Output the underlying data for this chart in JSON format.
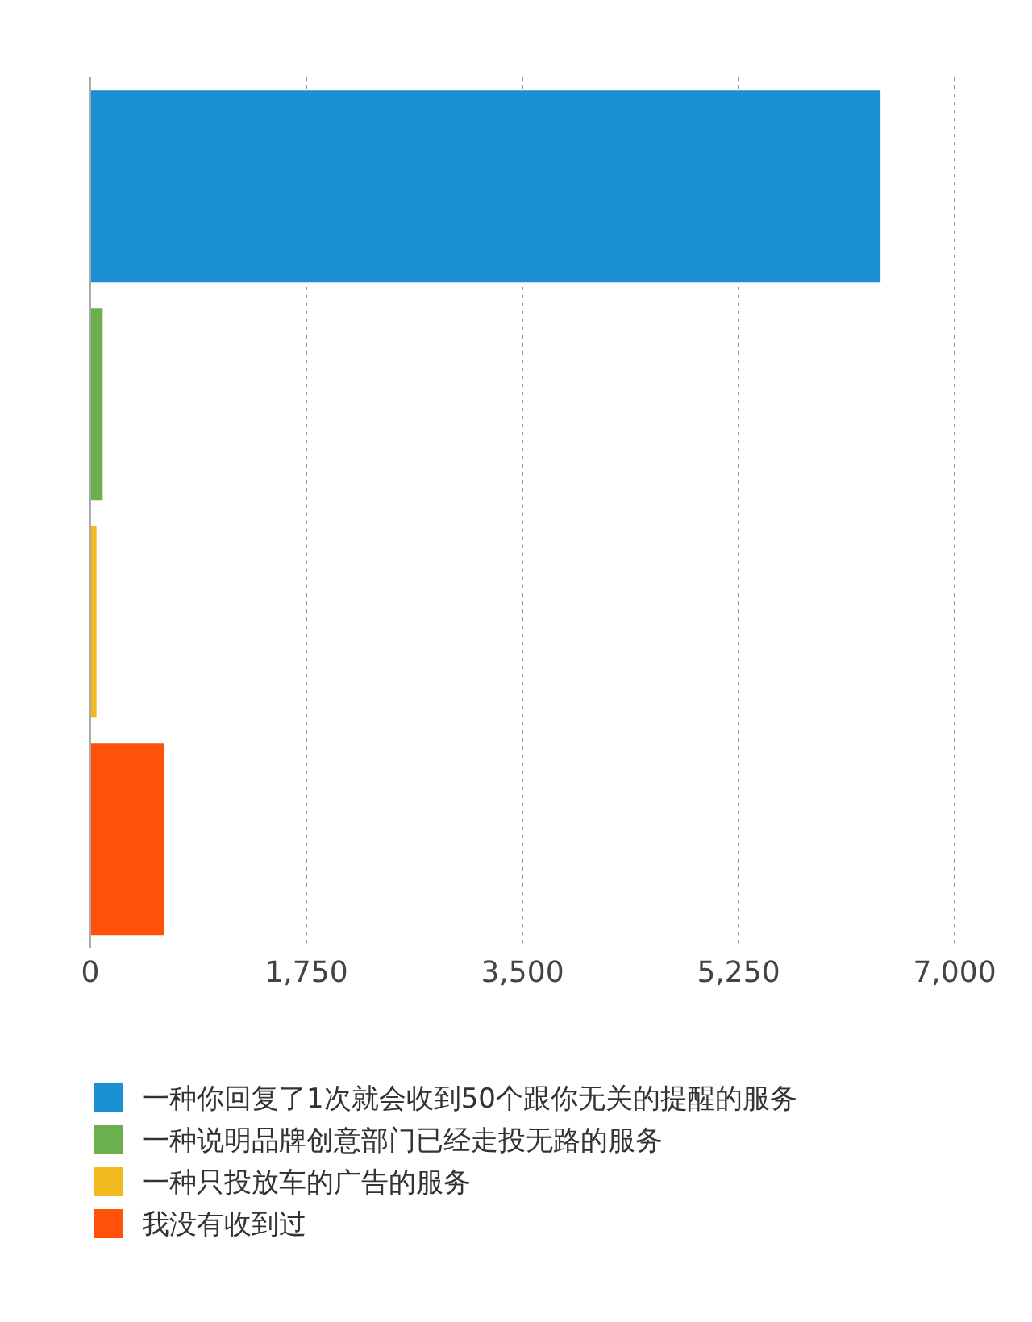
{
  "chart_data": {
    "type": "bar",
    "orientation": "horizontal",
    "stacked": true,
    "categories": [
      null,
      null,
      null,
      null
    ],
    "series": [
      {
        "name": "一种你回复了1次就会收到50个跟你无关的提醒的服务",
        "color": "#1a8fd1",
        "values": [
          6400,
          null,
          null,
          null
        ]
      },
      {
        "name": "一种说明品牌创意部门已经走投无路的服务",
        "color": "#6ab04c",
        "values": [
          null,
          100,
          null,
          null
        ]
      },
      {
        "name": "一种只投放车的广告的服务",
        "color": "#f0b91e",
        "values": [
          null,
          null,
          50,
          null
        ]
      },
      {
        "name": "我没有收到过",
        "color": "#ff5208",
        "values": [
          null,
          null,
          null,
          600
        ]
      }
    ],
    "xlim": [
      0,
      7000
    ],
    "xticks": [
      0,
      {
        "value": 1750,
        "label": "1,750"
      },
      {
        "value": 3500,
        "label": "3,500"
      },
      {
        "value": 5250,
        "label": "5,250"
      },
      {
        "value": 7000,
        "label": "7,000"
      }
    ],
    "grid": "x",
    "legend": "bottom"
  }
}
